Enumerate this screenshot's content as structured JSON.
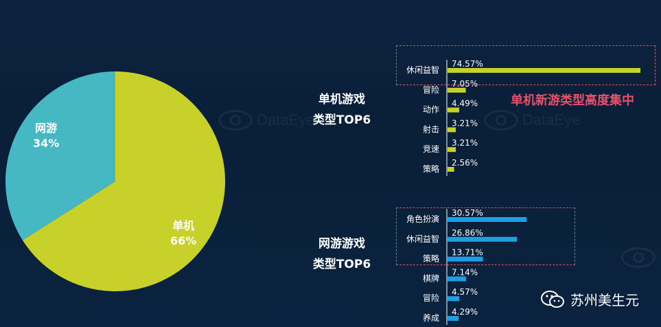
{
  "watermark": {
    "text": "DataEye"
  },
  "pie": {
    "labels": [
      {
        "name": "网游",
        "value": "34%"
      },
      {
        "name": "单机",
        "value": "66%"
      }
    ]
  },
  "top_title": {
    "line1": "单机游戏",
    "line2": "类型TOP6"
  },
  "bottom_title": {
    "line1": "网游游戏",
    "line2": "类型TOP6"
  },
  "callout": "单机新游类型高度集中",
  "brand": {
    "name": "苏州美生元",
    "icon": "wechat-icon"
  },
  "colors": {
    "pie_single": "#c8d129",
    "pie_online": "#45b8c3",
    "bar_single": "#c8d129",
    "bar_online": "#1e9fe5",
    "highlight": "#d9516a"
  },
  "chart_data": [
    {
      "type": "pie",
      "categories": [
        "单机",
        "网游"
      ],
      "values": [
        66,
        34
      ],
      "value_labels": [
        "66%",
        "34%"
      ]
    },
    {
      "type": "bar",
      "orientation": "horizontal",
      "title": "单机游戏 类型TOP6",
      "categories": [
        "休闲益智",
        "冒险",
        "动作",
        "射击",
        "竞速",
        "策略"
      ],
      "values": [
        74.57,
        7.05,
        4.49,
        3.21,
        3.21,
        2.56
      ],
      "value_labels": [
        "74.57%",
        "7.05%",
        "4.49%",
        "3.21%",
        "3.21%",
        "2.56%"
      ],
      "highlighted": [
        "休闲益智"
      ]
    },
    {
      "type": "bar",
      "orientation": "horizontal",
      "title": "网游游戏 类型TOP6",
      "categories": [
        "角色扮演",
        "休闲益智",
        "策略",
        "棋牌",
        "冒险",
        "养成"
      ],
      "values": [
        30.57,
        26.86,
        13.71,
        7.14,
        4.57,
        4.29
      ],
      "value_labels": [
        "30.57%",
        "26.86%",
        "13.71%",
        "7.14%",
        "4.57%",
        "4.29%"
      ],
      "highlighted": [
        "角色扮演",
        "休闲益智",
        "策略"
      ]
    }
  ]
}
